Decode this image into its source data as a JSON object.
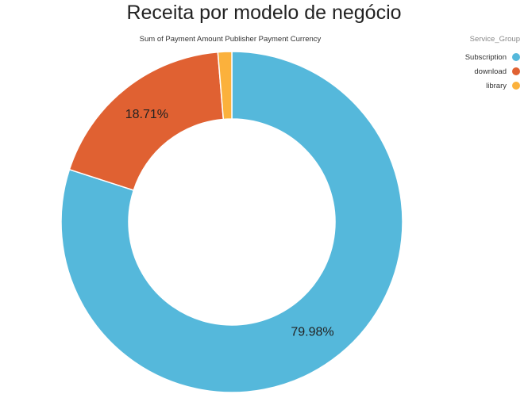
{
  "chart_data": {
    "type": "pie",
    "style": "donut",
    "title": "Receita por modelo de negócio",
    "subtitle": "Sum of Payment Amount Publisher Payment Currency",
    "legend_title": "Service_Group",
    "legend_position": "top-right",
    "categories": [
      "Subscription",
      "download",
      "library"
    ],
    "values": [
      79.98,
      18.71,
      1.31
    ],
    "data_labels": [
      "79.98%",
      "18.71%",
      ""
    ],
    "colors": [
      "#55b8db",
      "#e06132",
      "#fbb13c"
    ]
  }
}
